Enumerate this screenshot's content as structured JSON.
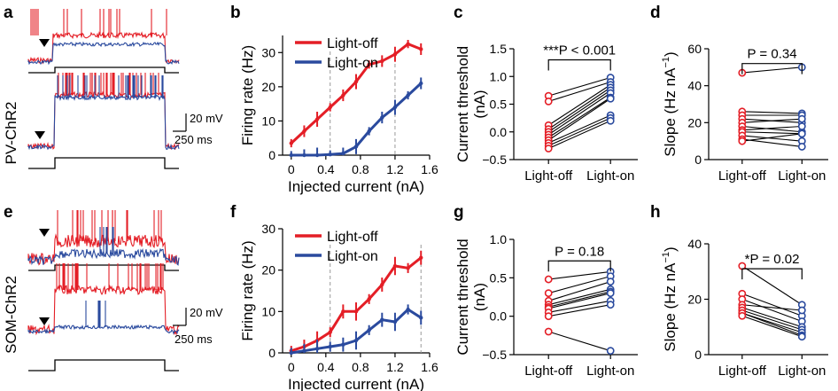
{
  "colors": {
    "light_off": "#e41e26",
    "light_on": "#2a4a9e",
    "dashed": "#999999"
  },
  "panel_labels": {
    "a": "a",
    "b": "b",
    "c": "c",
    "d": "d",
    "e": "e",
    "f": "f",
    "g": "g",
    "h": "h"
  },
  "row_labels": {
    "top": "PV-ChR2",
    "bottom": "SOM-ChR2"
  },
  "scale_bars": {
    "voltage": "20 mV",
    "time": "250 ms"
  },
  "legend": {
    "off": "Light-off",
    "on": "Light-on"
  },
  "axis_labels": {
    "firing_rate": "Firing rate (Hz)",
    "injected_current": "Injected current (nA)",
    "current_threshold": "Current threshold",
    "current_threshold_unit": "(nA)",
    "slope": "Slope (Hz nA",
    "slope_sup": "−1",
    "slope_close": ")"
  },
  "categories": [
    "Light-off",
    "Light-on"
  ],
  "stats": {
    "c": "***P < 0.001",
    "d": "P = 0.34",
    "g": "P = 0.18",
    "h": "*P = 0.02"
  },
  "chart_data": [
    {
      "panel": "b",
      "type": "line",
      "x": [
        0,
        0.15,
        0.3,
        0.45,
        0.6,
        0.75,
        0.9,
        1.05,
        1.2,
        1.35,
        1.5
      ],
      "xticks": [
        0,
        0.4,
        0.8,
        1.2,
        1.6
      ],
      "yticks": [
        0,
        10,
        20,
        30
      ],
      "xlim": [
        -0.1,
        1.6
      ],
      "ylim": [
        0,
        35
      ],
      "dashed_x": [
        0.45,
        1.2
      ],
      "series": [
        {
          "name": "Light-off",
          "values": [
            3.5,
            7,
            10.5,
            14,
            17.5,
            21.5,
            26.5,
            27.5,
            29.5,
            32.5,
            31
          ]
        },
        {
          "name": "Light-on",
          "values": [
            0,
            0,
            0,
            0.2,
            0.5,
            2.5,
            7,
            11,
            14,
            17.5,
            21
          ]
        }
      ]
    },
    {
      "panel": "f",
      "type": "line",
      "x": [
        0,
        0.15,
        0.3,
        0.45,
        0.6,
        0.75,
        0.9,
        1.05,
        1.2,
        1.35,
        1.5
      ],
      "xticks": [
        0,
        0.4,
        0.8,
        1.2,
        1.6
      ],
      "yticks": [
        0,
        10,
        20,
        30
      ],
      "xlim": [
        -0.1,
        1.6
      ],
      "ylim": [
        0,
        30
      ],
      "dashed_x": [
        0.45,
        1.5
      ],
      "series": [
        {
          "name": "Light-off",
          "values": [
            0.5,
            1.5,
            3,
            5,
            10,
            10,
            13,
            16.5,
            21,
            20.5,
            23
          ]
        },
        {
          "name": "Light-on",
          "values": [
            0,
            0.5,
            1,
            1.5,
            2,
            3,
            5.5,
            8,
            7.5,
            10.5,
            8.5
          ]
        }
      ]
    },
    {
      "panel": "c",
      "type": "scatter",
      "yticks": [
        -0.5,
        0,
        0.5,
        1.0,
        1.5
      ],
      "ytick_labels": [
        "−0.5",
        "0.0",
        "0.5",
        "1.0",
        "1.5"
      ],
      "ylim": [
        -0.5,
        1.5
      ],
      "pairs": [
        [
          0.65,
          0.98
        ],
        [
          0.55,
          0.9
        ],
        [
          0.12,
          0.85
        ],
        [
          0.05,
          0.8
        ],
        [
          0.0,
          0.75
        ],
        [
          -0.05,
          0.7
        ],
        [
          -0.1,
          0.62
        ],
        [
          -0.15,
          0.6
        ],
        [
          -0.2,
          0.3
        ],
        [
          -0.25,
          0.25
        ],
        [
          -0.3,
          0.2
        ]
      ]
    },
    {
      "panel": "d",
      "type": "scatter",
      "yticks": [
        0,
        20,
        40,
        60
      ],
      "ylim": [
        0,
        60
      ],
      "pairs": [
        [
          47,
          50
        ],
        [
          26,
          25
        ],
        [
          24,
          24
        ],
        [
          22,
          20
        ],
        [
          20,
          22
        ],
        [
          18,
          15
        ],
        [
          16,
          18
        ],
        [
          15,
          14
        ],
        [
          13,
          10
        ],
        [
          11,
          7
        ],
        [
          10,
          14
        ]
      ]
    },
    {
      "panel": "g",
      "type": "scatter",
      "yticks": [
        -0.5,
        0,
        0.5,
        1.0
      ],
      "ytick_labels": [
        "−0.5",
        "0.0",
        "0.5",
        "1.0"
      ],
      "ylim": [
        -0.5,
        1.0
      ],
      "pairs": [
        [
          0.48,
          0.58
        ],
        [
          0.3,
          0.52
        ],
        [
          0.2,
          0.45
        ],
        [
          0.15,
          0.35
        ],
        [
          0.12,
          0.32
        ],
        [
          0.1,
          0.3
        ],
        [
          0.05,
          0.2
        ],
        [
          0.0,
          0.15
        ],
        [
          -0.2,
          -0.45
        ]
      ]
    },
    {
      "panel": "h",
      "type": "scatter",
      "yticks": [
        0,
        20,
        40
      ],
      "ylim": [
        0,
        40
      ],
      "pairs": [
        [
          32,
          18
        ],
        [
          22,
          14
        ],
        [
          20,
          12
        ],
        [
          18,
          16
        ],
        [
          17,
          10
        ],
        [
          16,
          9
        ],
        [
          15,
          8
        ],
        [
          15,
          7
        ],
        [
          14,
          6.5
        ]
      ]
    }
  ]
}
